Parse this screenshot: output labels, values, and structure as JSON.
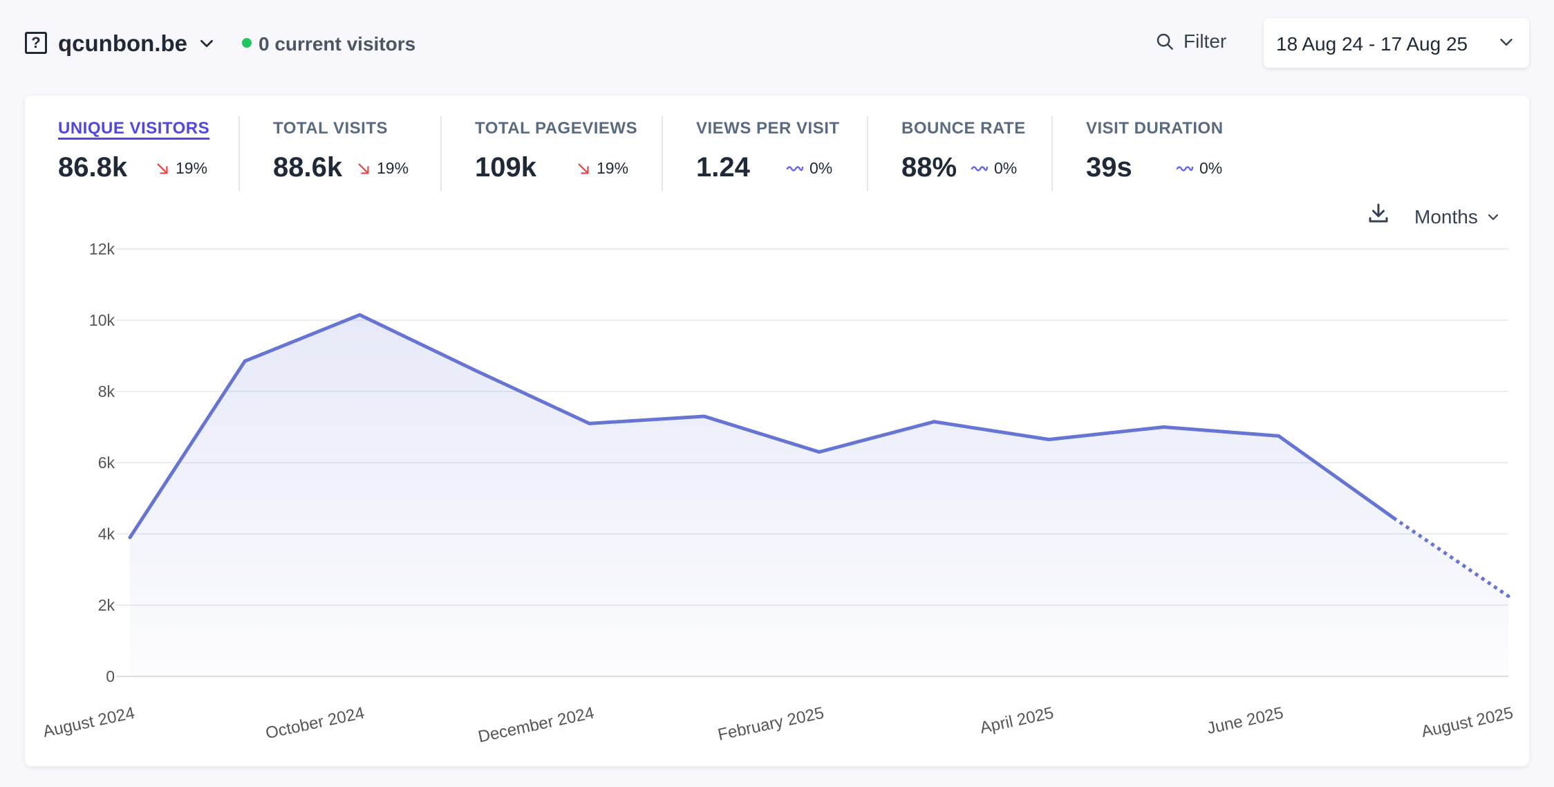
{
  "header": {
    "site_name": "qcunbon.be",
    "current_visitors": "0 current visitors",
    "filter_label": "Filter",
    "date_range": "18 Aug 24 - 17 Aug 25"
  },
  "metrics": [
    {
      "label": "UNIQUE VISITORS",
      "value": "86.8k",
      "change": "19%",
      "trend": "down",
      "active": true
    },
    {
      "label": "TOTAL VISITS",
      "value": "88.6k",
      "change": "19%",
      "trend": "down",
      "active": false
    },
    {
      "label": "TOTAL PAGEVIEWS",
      "value": "109k",
      "change": "19%",
      "trend": "down",
      "active": false
    },
    {
      "label": "VIEWS PER VISIT",
      "value": "1.24",
      "change": "0%",
      "trend": "flat",
      "active": false
    },
    {
      "label": "BOUNCE RATE",
      "value": "88%",
      "change": "0%",
      "trend": "flat",
      "active": false
    },
    {
      "label": "VISIT DURATION",
      "value": "39s",
      "change": "0%",
      "trend": "flat",
      "active": false
    }
  ],
  "chart_controls": {
    "interval_label": "Months"
  },
  "colors": {
    "accent": "#6674d4",
    "active_metric": "#4f46e5",
    "live": "#22c55e",
    "trend_down": "#ef4444",
    "trend_flat": "#6366f1"
  },
  "chart_data": {
    "type": "area",
    "x": [
      "August 2024",
      "September 2024",
      "October 2024",
      "November 2024",
      "December 2024",
      "January 2025",
      "February 2025",
      "March 2025",
      "April 2025",
      "May 2025",
      "June 2025",
      "July 2025",
      "August 2025"
    ],
    "tick_labels": [
      "August 2024",
      "October 2024",
      "December 2024",
      "February 2025",
      "April 2025",
      "June 2025",
      "August 2025"
    ],
    "y_tick_labels": [
      "0",
      "2k",
      "4k",
      "6k",
      "8k",
      "10k",
      "12k"
    ],
    "series": [
      {
        "values": [
          3900,
          8850,
          10150,
          8600,
          7100,
          7300,
          6300,
          7150,
          6650,
          7000,
          6750,
          4450,
          2250
        ]
      }
    ],
    "incomplete_last_segments": 1,
    "ylim": [
      0,
      12000
    ],
    "grid": true
  }
}
